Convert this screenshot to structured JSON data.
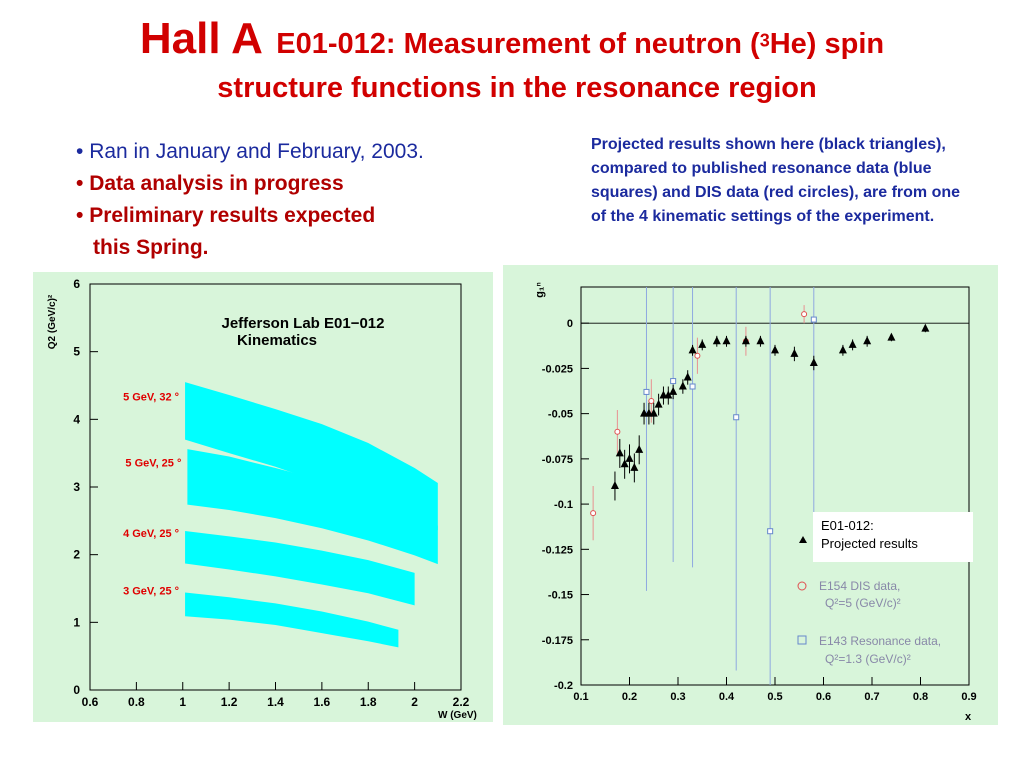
{
  "title": {
    "hall": "Hall A",
    "line1_pre": "E01-012: Measurement of neutron (",
    "sup": "3",
    "line1_post": "He) spin",
    "line2": "structure functions in the resonance region"
  },
  "bullets": {
    "b1": "Ran in January and  February,  2003.",
    "b2": "Data analysis in progress",
    "b3a": "Preliminary results expected",
    "b3b": "this Spring."
  },
  "projected_text": " Projected results shown here (black triangles), compared to published resonance data (blue squares) and DIS data (red circles), are from one of the 4 kinematic settings of the experiment.",
  "colors": {
    "title": "#d10000",
    "bullet_blue": "#1b2a9e",
    "band": "#00ffff",
    "panel_bg": "#d8f5da"
  },
  "chart_data": [
    {
      "type": "area",
      "title_line1": "Jefferson Lab E01−012",
      "title_line2": "Kinematics",
      "xlabel": "W (GeV)",
      "ylabel": "Q2 (GeV/c)²",
      "xlim": [
        0.6,
        2.2
      ],
      "ylim": [
        0,
        6
      ],
      "xticks": [
        "0.6",
        "0.8",
        "1",
        "1.2",
        "1.4",
        "1.6",
        "1.8",
        "2",
        "2.2"
      ],
      "yticks": [
        "0",
        "1",
        "2",
        "3",
        "4",
        "5",
        "6"
      ],
      "bands": [
        {
          "name": "5 GeV, 32 °",
          "x": [
            1.01,
            1.2,
            1.4,
            1.6,
            1.8,
            2.0,
            2.1
          ],
          "upper": [
            4.55,
            4.36,
            4.15,
            3.93,
            3.65,
            3.28,
            3.06
          ],
          "lower": [
            3.7,
            3.5,
            3.3,
            3.06,
            2.8,
            2.51,
            2.36
          ]
        },
        {
          "name": "5 GeV, 25 °",
          "x": [
            1.02,
            1.2,
            1.4,
            1.6,
            1.8,
            2.0,
            2.1
          ],
          "upper": [
            3.56,
            3.45,
            3.28,
            3.1,
            2.86,
            2.59,
            2.43
          ],
          "lower": [
            2.74,
            2.66,
            2.54,
            2.39,
            2.21,
            1.99,
            1.86
          ]
        },
        {
          "name": "4 GeV, 25 °",
          "x": [
            1.01,
            1.2,
            1.4,
            1.6,
            1.8,
            2.0
          ],
          "upper": [
            2.35,
            2.27,
            2.18,
            2.06,
            1.92,
            1.73
          ],
          "lower": [
            1.87,
            1.78,
            1.68,
            1.56,
            1.43,
            1.25
          ]
        },
        {
          "name": "3 GeV, 25 °",
          "x": [
            1.01,
            1.2,
            1.4,
            1.6,
            1.8,
            1.93
          ],
          "upper": [
            1.44,
            1.37,
            1.28,
            1.16,
            1.01,
            0.89
          ],
          "lower": [
            1.09,
            1.04,
            0.96,
            0.84,
            0.72,
            0.63
          ]
        }
      ]
    },
    {
      "type": "scatter",
      "xlabel": "x",
      "ylabel": "g₁ⁿ",
      "xlim": [
        0.1,
        0.9
      ],
      "ylim": [
        -0.2,
        0.02
      ],
      "xticks": [
        "0.1",
        "0.2",
        "0.3",
        "0.4",
        "0.5",
        "0.6",
        "0.7",
        "0.8",
        "0.9"
      ],
      "yticks": [
        "0",
        "-0.025",
        "-0.05",
        "-0.075",
        "-0.1",
        "-0.125",
        "-0.15",
        "-0.175",
        "-0.2"
      ],
      "series": [
        {
          "name": "E01-012: Projected results",
          "marker": "triangle",
          "color": "#000000",
          "x": [
            0.17,
            0.18,
            0.19,
            0.2,
            0.21,
            0.22,
            0.23,
            0.24,
            0.25,
            0.26,
            0.27,
            0.28,
            0.29,
            0.31,
            0.32,
            0.33,
            0.35,
            0.38,
            0.4,
            0.44,
            0.47,
            0.5,
            0.54,
            0.58,
            0.64,
            0.66,
            0.69,
            0.74,
            0.81
          ],
          "y": [
            -0.09,
            -0.072,
            -0.078,
            -0.075,
            -0.08,
            -0.07,
            -0.05,
            -0.05,
            -0.05,
            -0.045,
            -0.04,
            -0.04,
            -0.038,
            -0.035,
            -0.03,
            -0.015,
            -0.012,
            -0.01,
            -0.01,
            -0.01,
            -0.01,
            -0.015,
            -0.017,
            -0.022,
            -0.015,
            -0.012,
            -0.01,
            -0.008,
            -0.003
          ],
          "err": [
            0.008,
            0.008,
            0.008,
            0.008,
            0.008,
            0.008,
            0.006,
            0.006,
            0.006,
            0.006,
            0.005,
            0.005,
            0.004,
            0.004,
            0.004,
            0.003,
            0.003,
            0.003,
            0.003,
            0.003,
            0.003,
            0.003,
            0.004,
            0.004,
            0.003,
            0.003,
            0.003,
            0.002,
            0.002
          ]
        },
        {
          "name": "E154 DIS data,",
          "marker": "circle",
          "color": "#e05050",
          "x": [
            0.125,
            0.175,
            0.245,
            0.34,
            0.44,
            0.56
          ],
          "y": [
            -0.105,
            -0.06,
            -0.043,
            -0.018,
            -0.01,
            0.005
          ],
          "err": [
            0.015,
            0.012,
            0.012,
            0.01,
            0.008,
            0.005
          ]
        },
        {
          "name": "E143 Resonance data,",
          "marker": "square",
          "color": "#6688cc",
          "x": [
            0.235,
            0.29,
            0.33,
            0.42,
            0.49,
            0.58
          ],
          "y": [
            -0.038,
            -0.032,
            -0.035,
            -0.052,
            -0.115,
            0.002
          ],
          "err": [
            0.11,
            0.1,
            0.1,
            0.14,
            0.15,
            0.12
          ]
        }
      ],
      "legend": {
        "proj": [
          "E01-012:",
          "Projected results"
        ],
        "e154": [
          "E154 DIS data,",
          "Q²=5 (GeV/c)²"
        ],
        "e143": [
          "E143 Resonance data,",
          "Q²=1.3 (GeV/c)²"
        ]
      }
    }
  ]
}
